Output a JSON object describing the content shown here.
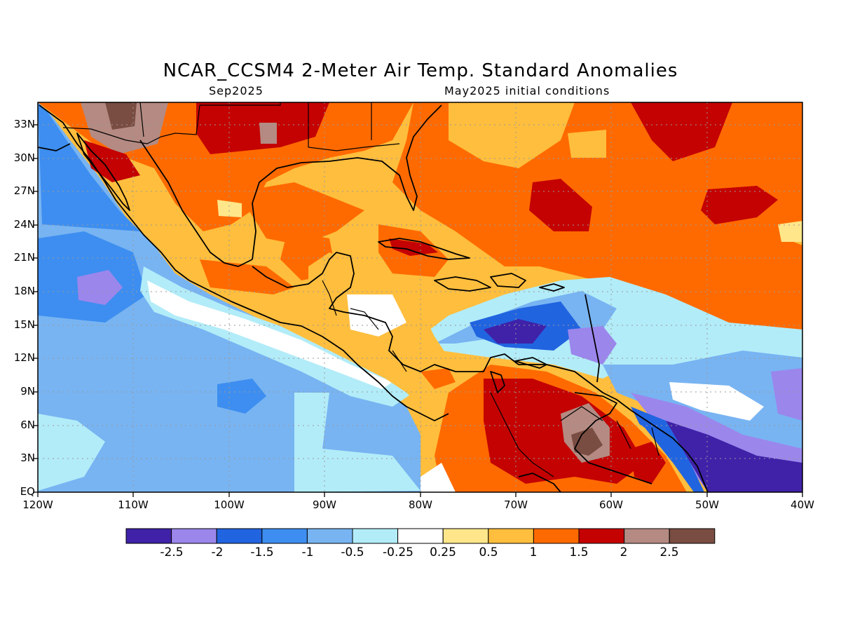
{
  "header": {
    "title": "NCAR_CCSM4 2-Meter Air Temp. Standard Anomalies",
    "valid_month": "Sep2025",
    "init": "May2025 initial conditions"
  },
  "axes": {
    "lat_labels": [
      "33N",
      "30N",
      "27N",
      "24N",
      "21N",
      "18N",
      "15N",
      "12N",
      "9N",
      "6N",
      "3N",
      "EQ"
    ],
    "lon_labels": [
      "120W",
      "110W",
      "100W",
      "90W",
      "80W",
      "70W",
      "60W",
      "50W",
      "40W"
    ]
  },
  "colorbar": {
    "labels": [
      "-2.5",
      "-2",
      "-1.5",
      "-1",
      "-0.5",
      "-0.25",
      "0.25",
      "0.5",
      "1",
      "1.5",
      "2",
      "2.5"
    ],
    "colors": [
      "#3f22a8",
      "#9b86ec",
      "#2164e0",
      "#3d8ef0",
      "#78b4f2",
      "#b2ecf8",
      "#ffffff",
      "#ffe68a",
      "#ffbe3d",
      "#ff6a00",
      "#c40202",
      "#b48a82",
      "#7a4d42"
    ]
  },
  "map": {
    "extent": {
      "lon": [
        -120,
        -40
      ],
      "lat": [
        0,
        35
      ]
    },
    "grid": "dotted"
  }
}
